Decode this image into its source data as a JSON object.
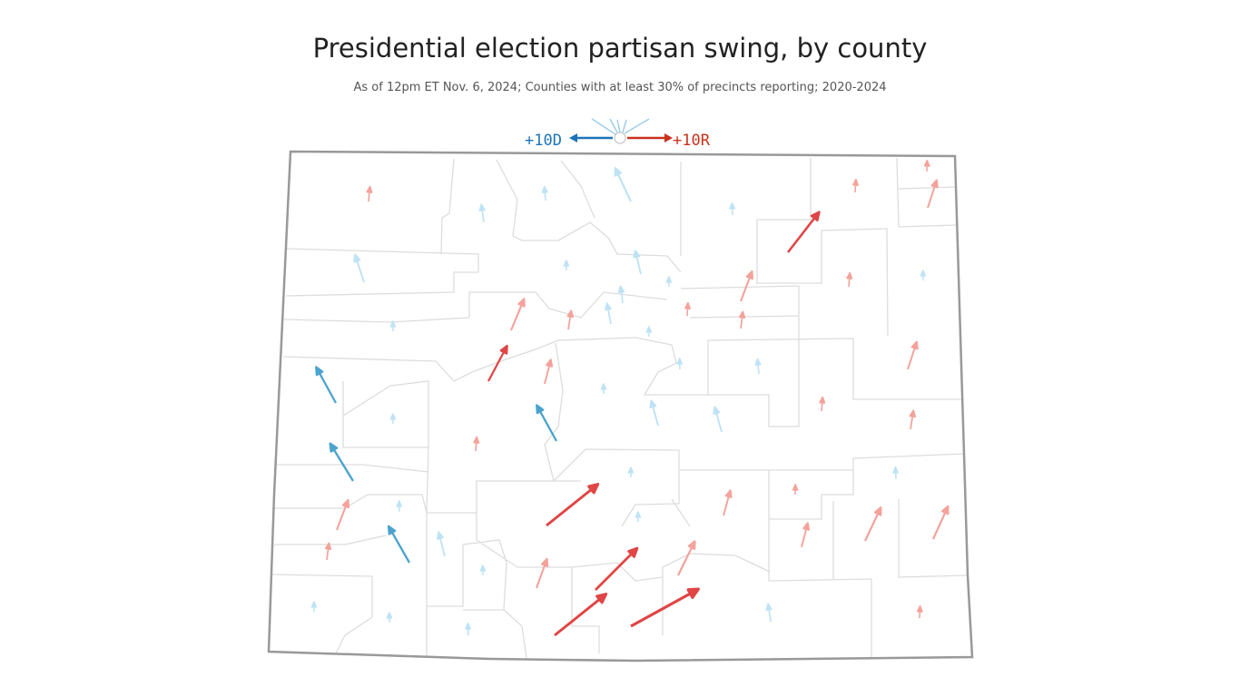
{
  "title": "Presidential election partisan swing, by county",
  "subtitle": "As of 12pm ET Nov. 6, 2024; Counties with at least 30% of precincts reporting; 2020-2024",
  "legend": {
    "d_label": "+10D",
    "r_label": "+10R",
    "d_color": "#1d74b8",
    "r_color": "#c8321e"
  },
  "colors": {
    "r": [
      "#f4a29b",
      "#e04545"
    ],
    "d": [
      "#bfe3f5",
      "#4ba3cf"
    ]
  },
  "swing": [
    0.6,
    -0.9,
    -0.5,
    -2.8,
    -0.3,
    4.2,
    0.4,
    2,
    0.2,
    -2,
    -0.1,
    -1.5,
    -0.8,
    -0.1,
    2.5,
    1,
    -1.2,
    0.4,
    2.3,
    0.8,
    0.5,
    -0.1,
    -0.1,
    -0.1,
    3.1,
    1.6,
    -3.2,
    -0.2,
    -0.6,
    2,
    -0.1,
    -1.7,
    -1.7,
    0.5,
    -0.1,
    -3.2,
    1,
    0.5,
    -3.5,
    -0.1,
    -0.3,
    5.7,
    1.7,
    0.1,
    2.3,
    -0.2,
    -3.3,
    -1.6,
    -0.1,
    1.6,
    2.8,
    2.7,
    0.8,
    2.2,
    5,
    2.9,
    -0.1,
    -0.1,
    -0.1,
    5.7,
    6.8,
    -0.3,
    -0.9,
    0.3
  ]
}
